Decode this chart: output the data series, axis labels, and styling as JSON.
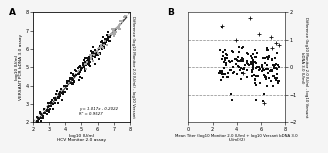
{
  "panel_A": {
    "label": "A",
    "xlabel": "log10 IU/ml\nHCV Monitor 2.0 assay",
    "ylabel": "log10 IU/ml\nVERSANT PCR bDNA 3.0 assay",
    "right_ylabel": "Difference (log10 Monitor 2.0 IU/ml) - log10 Versant",
    "xlim": [
      2,
      8
    ],
    "ylim": [
      2,
      8
    ],
    "xticks": [
      2,
      3,
      4,
      5,
      6,
      7,
      8
    ],
    "yticks": [
      2,
      3,
      4,
      5,
      6,
      7,
      8
    ],
    "annotation_line1": "y = 1.017x - 0.2022",
    "annotation_line2": "R² = 0.9527",
    "reg_slope": 1.017,
    "reg_intercept": -0.2022
  },
  "panel_B": {
    "label": "B",
    "xlabel": "Mean Titer (log10 Monitor 2.0 IU/ml + log10 Versant bDNA 3.0\nIU/ml)/2)",
    "ylabel": "Difference (log10 Monitor 2.0 IU/ml - log10 Versant\nbDNA 3.0 IU/ml)",
    "xlim": [
      0,
      8
    ],
    "ylim": [
      -2,
      2
    ],
    "xticks": [
      0,
      2,
      4,
      6,
      8
    ],
    "yticks": [
      -2,
      -1,
      0,
      1,
      2
    ],
    "hlines": [
      -1,
      0,
      1
    ]
  },
  "scatter_color_black": "#111111",
  "scatter_color_gray": "#aaaaaa",
  "bg_color": "#f5f5f5",
  "panel_bg": "#ffffff"
}
